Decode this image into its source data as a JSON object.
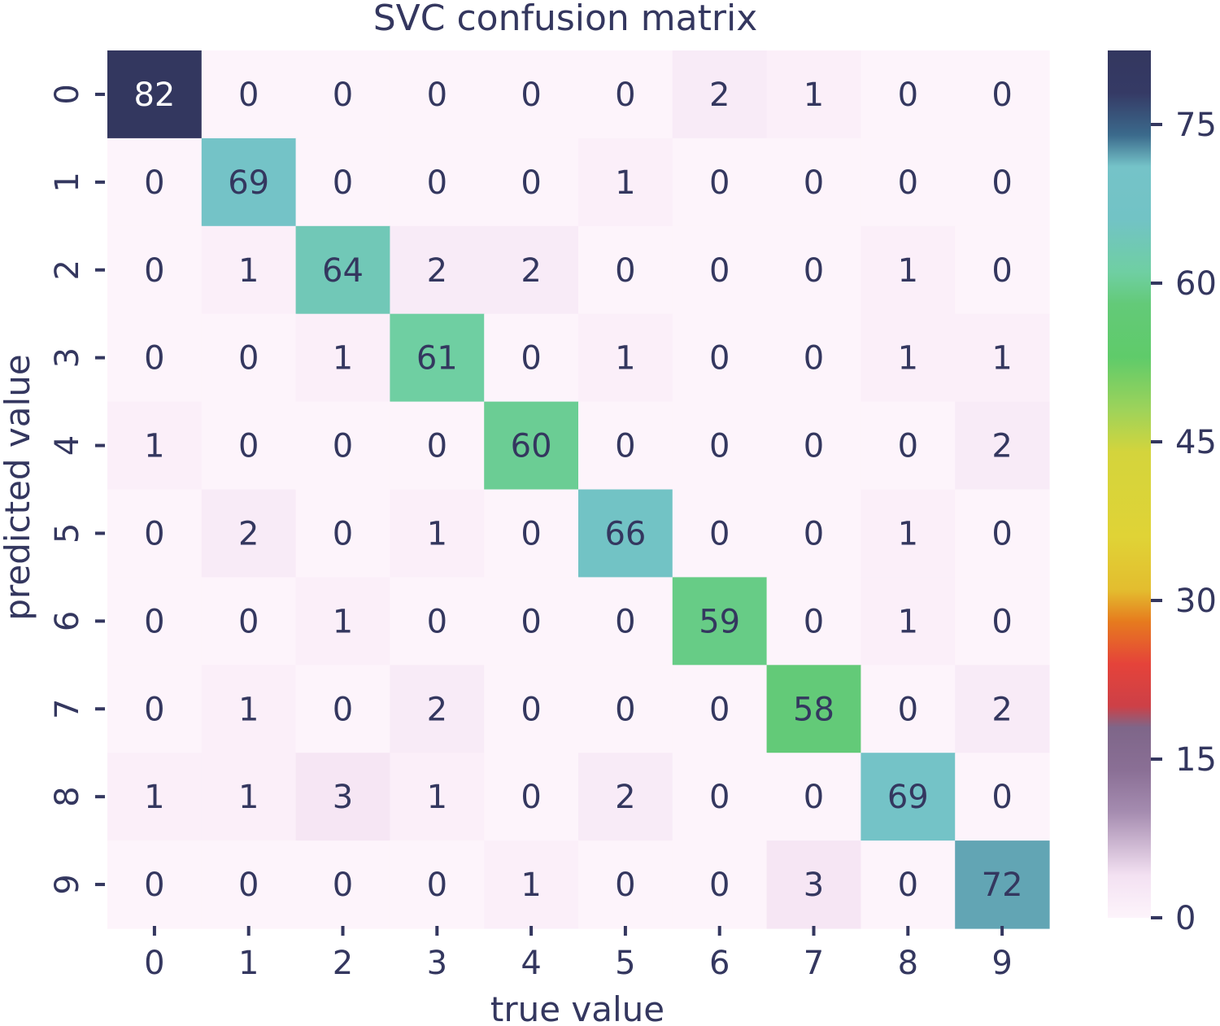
{
  "chart_data": {
    "type": "heatmap",
    "title": "SVC confusion matrix",
    "xlabel": "true value",
    "ylabel": "predicted value",
    "x_categories": [
      "0",
      "1",
      "2",
      "3",
      "4",
      "5",
      "6",
      "7",
      "8",
      "9"
    ],
    "y_categories": [
      "0",
      "1",
      "2",
      "3",
      "4",
      "5",
      "6",
      "7",
      "8",
      "9"
    ],
    "values": [
      [
        82,
        0,
        0,
        0,
        0,
        0,
        2,
        1,
        0,
        0
      ],
      [
        0,
        69,
        0,
        0,
        0,
        1,
        0,
        0,
        0,
        0
      ],
      [
        0,
        1,
        64,
        2,
        2,
        0,
        0,
        0,
        1,
        0
      ],
      [
        0,
        0,
        1,
        61,
        0,
        1,
        0,
        0,
        1,
        1
      ],
      [
        1,
        0,
        0,
        0,
        60,
        0,
        0,
        0,
        0,
        2
      ],
      [
        0,
        2,
        0,
        1,
        0,
        66,
        0,
        0,
        1,
        0
      ],
      [
        0,
        0,
        1,
        0,
        0,
        0,
        59,
        0,
        1,
        0
      ],
      [
        0,
        1,
        0,
        2,
        0,
        0,
        0,
        58,
        0,
        2
      ],
      [
        1,
        1,
        3,
        1,
        0,
        2,
        0,
        0,
        69,
        0
      ],
      [
        0,
        0,
        0,
        0,
        1,
        0,
        0,
        3,
        0,
        72
      ]
    ],
    "colorbar": {
      "ticks": [
        0,
        15,
        30,
        45,
        60,
        75
      ],
      "range": [
        0,
        82
      ]
    },
    "colorscale": [
      [
        0,
        "#fdf4fb"
      ],
      [
        4,
        "#f3e1f2"
      ],
      [
        10,
        "#a58cb0"
      ],
      [
        14,
        "#8a6f95"
      ],
      [
        18,
        "#7e6689"
      ],
      [
        20,
        "#cd4047"
      ],
      [
        24,
        "#e5433a"
      ],
      [
        28,
        "#e67b1e"
      ],
      [
        31,
        "#e3bd2f"
      ],
      [
        36,
        "#e0d336"
      ],
      [
        44,
        "#d4d43c"
      ],
      [
        48,
        "#9ed35a"
      ],
      [
        53,
        "#5fcb6a"
      ],
      [
        58,
        "#63ca78"
      ],
      [
        61,
        "#6fcfa2"
      ],
      [
        66,
        "#72c3c5"
      ],
      [
        71,
        "#75c3c8"
      ],
      [
        74,
        "#3b6a8c"
      ],
      [
        78,
        "#353a65"
      ],
      [
        82,
        "#33375f"
      ]
    ],
    "text_color_dark": "#34375f",
    "text_color_light": "#ffffff",
    "axis_text_color": "#34375f"
  }
}
